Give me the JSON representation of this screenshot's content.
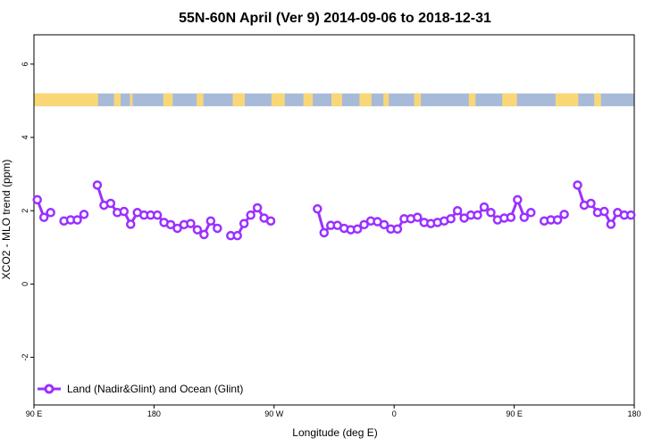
{
  "chart_data": {
    "type": "line",
    "title": "55N-60N April (Ver 9)   2014-09-06 to 2018-12-31",
    "xlabel": "Longitude (deg E)",
    "ylabel": "XCO2 - MLO trend (ppm)",
    "xlim": [
      90,
      540
    ],
    "ylim": [
      -3.3,
      6.8
    ],
    "x_ticks": [
      {
        "value": 90,
        "label": "90 E"
      },
      {
        "value": 180,
        "label": "180"
      },
      {
        "value": 270,
        "label": "90 W"
      },
      {
        "value": 360,
        "label": "0"
      },
      {
        "value": 450,
        "label": "90 E"
      },
      {
        "value": 540,
        "label": "180"
      }
    ],
    "y_ticks": [
      {
        "value": -2,
        "label": "-2"
      },
      {
        "value": 0,
        "label": "0"
      },
      {
        "value": 2,
        "label": "2"
      },
      {
        "value": 4,
        "label": "4"
      },
      {
        "value": 6,
        "label": "6"
      }
    ],
    "grid": false,
    "legend_position": "bottom-left",
    "series": [
      {
        "name": "Land (Nadir&Glint) and Ocean (Glint)",
        "color": "#9b30ff",
        "segments": [
          [
            [
              92.5,
              2.3
            ],
            [
              97.5,
              1.82
            ],
            [
              102.5,
              1.95
            ]
          ],
          [
            [
              112.5,
              1.72
            ],
            [
              117.5,
              1.75
            ],
            [
              122.5,
              1.75
            ],
            [
              127.5,
              1.9
            ]
          ],
          [
            [
              137.5,
              2.7
            ],
            [
              142.5,
              2.15
            ],
            [
              147.5,
              2.2
            ],
            [
              152.5,
              1.95
            ],
            [
              157.5,
              1.98
            ],
            [
              162.5,
              1.63
            ],
            [
              167.5,
              1.95
            ],
            [
              172.5,
              1.88
            ],
            [
              177.5,
              1.88
            ],
            [
              182.5,
              1.88
            ],
            [
              187.5,
              1.68
            ],
            [
              192.5,
              1.62
            ],
            [
              197.5,
              1.52
            ],
            [
              202.5,
              1.62
            ],
            [
              207.5,
              1.65
            ],
            [
              212.5,
              1.48
            ],
            [
              217.5,
              1.35
            ],
            [
              222.5,
              1.72
            ],
            [
              227.5,
              1.52
            ]
          ],
          [
            [
              237.5,
              1.32
            ],
            [
              242.5,
              1.32
            ],
            [
              247.5,
              1.65
            ],
            [
              252.5,
              1.88
            ],
            [
              257.5,
              2.08
            ],
            [
              262.5,
              1.8
            ],
            [
              267.5,
              1.72
            ]
          ],
          [
            [
              302.5,
              2.05
            ],
            [
              307.5,
              1.4
            ],
            [
              312.5,
              1.6
            ],
            [
              317.5,
              1.6
            ],
            [
              322.5,
              1.52
            ],
            [
              327.5,
              1.48
            ],
            [
              332.5,
              1.5
            ],
            [
              337.5,
              1.62
            ],
            [
              342.5,
              1.72
            ],
            [
              347.5,
              1.7
            ],
            [
              352.5,
              1.62
            ],
            [
              357.5,
              1.5
            ],
            [
              362.5,
              1.5
            ],
            [
              367.5,
              1.78
            ],
            [
              372.5,
              1.78
            ],
            [
              377.5,
              1.82
            ],
            [
              382.5,
              1.68
            ],
            [
              387.5,
              1.65
            ],
            [
              392.5,
              1.68
            ],
            [
              397.5,
              1.72
            ],
            [
              402.5,
              1.78
            ],
            [
              407.5,
              2.0
            ],
            [
              412.5,
              1.8
            ],
            [
              417.5,
              1.88
            ],
            [
              422.5,
              1.88
            ],
            [
              427.5,
              2.1
            ],
            [
              432.5,
              1.95
            ],
            [
              437.5,
              1.75
            ],
            [
              442.5,
              1.8
            ],
            [
              447.5,
              1.82
            ],
            [
              452.5,
              2.3
            ],
            [
              457.5,
              1.82
            ],
            [
              462.5,
              1.95
            ]
          ],
          [
            [
              472.5,
              1.72
            ],
            [
              477.5,
              1.75
            ],
            [
              482.5,
              1.75
            ],
            [
              487.5,
              1.9
            ]
          ],
          [
            [
              497.5,
              2.7
            ],
            [
              502.5,
              2.15
            ],
            [
              507.5,
              2.2
            ],
            [
              512.5,
              1.95
            ],
            [
              517.5,
              1.98
            ],
            [
              522.5,
              1.63
            ],
            [
              527.5,
              1.95
            ],
            [
              532.5,
              1.88
            ],
            [
              537.5,
              1.88
            ]
          ]
        ]
      }
    ],
    "background_band": {
      "y_range": [
        4.85,
        5.2
      ],
      "ocean_color": "#a7bbd9",
      "land_color": "#fad776",
      "land_intervals": [
        [
          90,
          138
        ],
        [
          150,
          155
        ],
        [
          162,
          164
        ],
        [
          187,
          194
        ],
        [
          212,
          217
        ],
        [
          239,
          248
        ],
        [
          268,
          278
        ],
        [
          292,
          299
        ],
        [
          313,
          321
        ],
        [
          334,
          343
        ],
        [
          352,
          356
        ],
        [
          375,
          380
        ],
        [
          416,
          421
        ],
        [
          441,
          452
        ],
        [
          481,
          498
        ],
        [
          510,
          515
        ]
      ]
    }
  }
}
